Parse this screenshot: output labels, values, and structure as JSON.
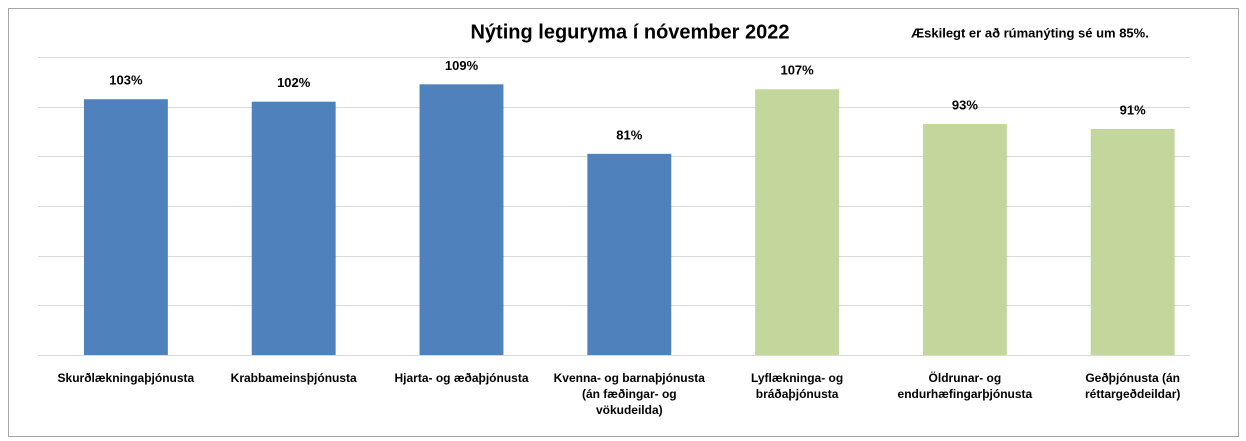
{
  "chart_data": {
    "type": "bar",
    "title": "Nýting leguryma í nóvember 2022",
    "annotation": "Æskilegt er að rúmanýting sé um 85%.",
    "categories": [
      "Skurðlækningaþjónusta",
      "Krabbameinsþjónusta",
      "Hjarta- og æðaþjónusta",
      "Kvenna- og barnaþjónusta\n(án fæðingar- og\nvökudeilda)",
      "Lyflækninga- og\nbráðaþjónusta",
      "Öldrunar- og\nendurhæfingarþjónusta",
      "Geðþjónusta (án\nréttargeðdeildar)"
    ],
    "values": [
      103,
      102,
      109,
      81,
      107,
      93,
      91
    ],
    "value_labels": [
      "103%",
      "102%",
      "109%",
      "81%",
      "107%",
      "93%",
      "91%"
    ],
    "colors": [
      "#4f81bd",
      "#4f81bd",
      "#4f81bd",
      "#4f81bd",
      "#c3d69b",
      "#c3d69b",
      "#c3d69b"
    ],
    "ylim": [
      0,
      120
    ],
    "yticks": [
      0,
      20,
      40,
      60,
      80,
      100,
      120
    ],
    "grid": true
  }
}
